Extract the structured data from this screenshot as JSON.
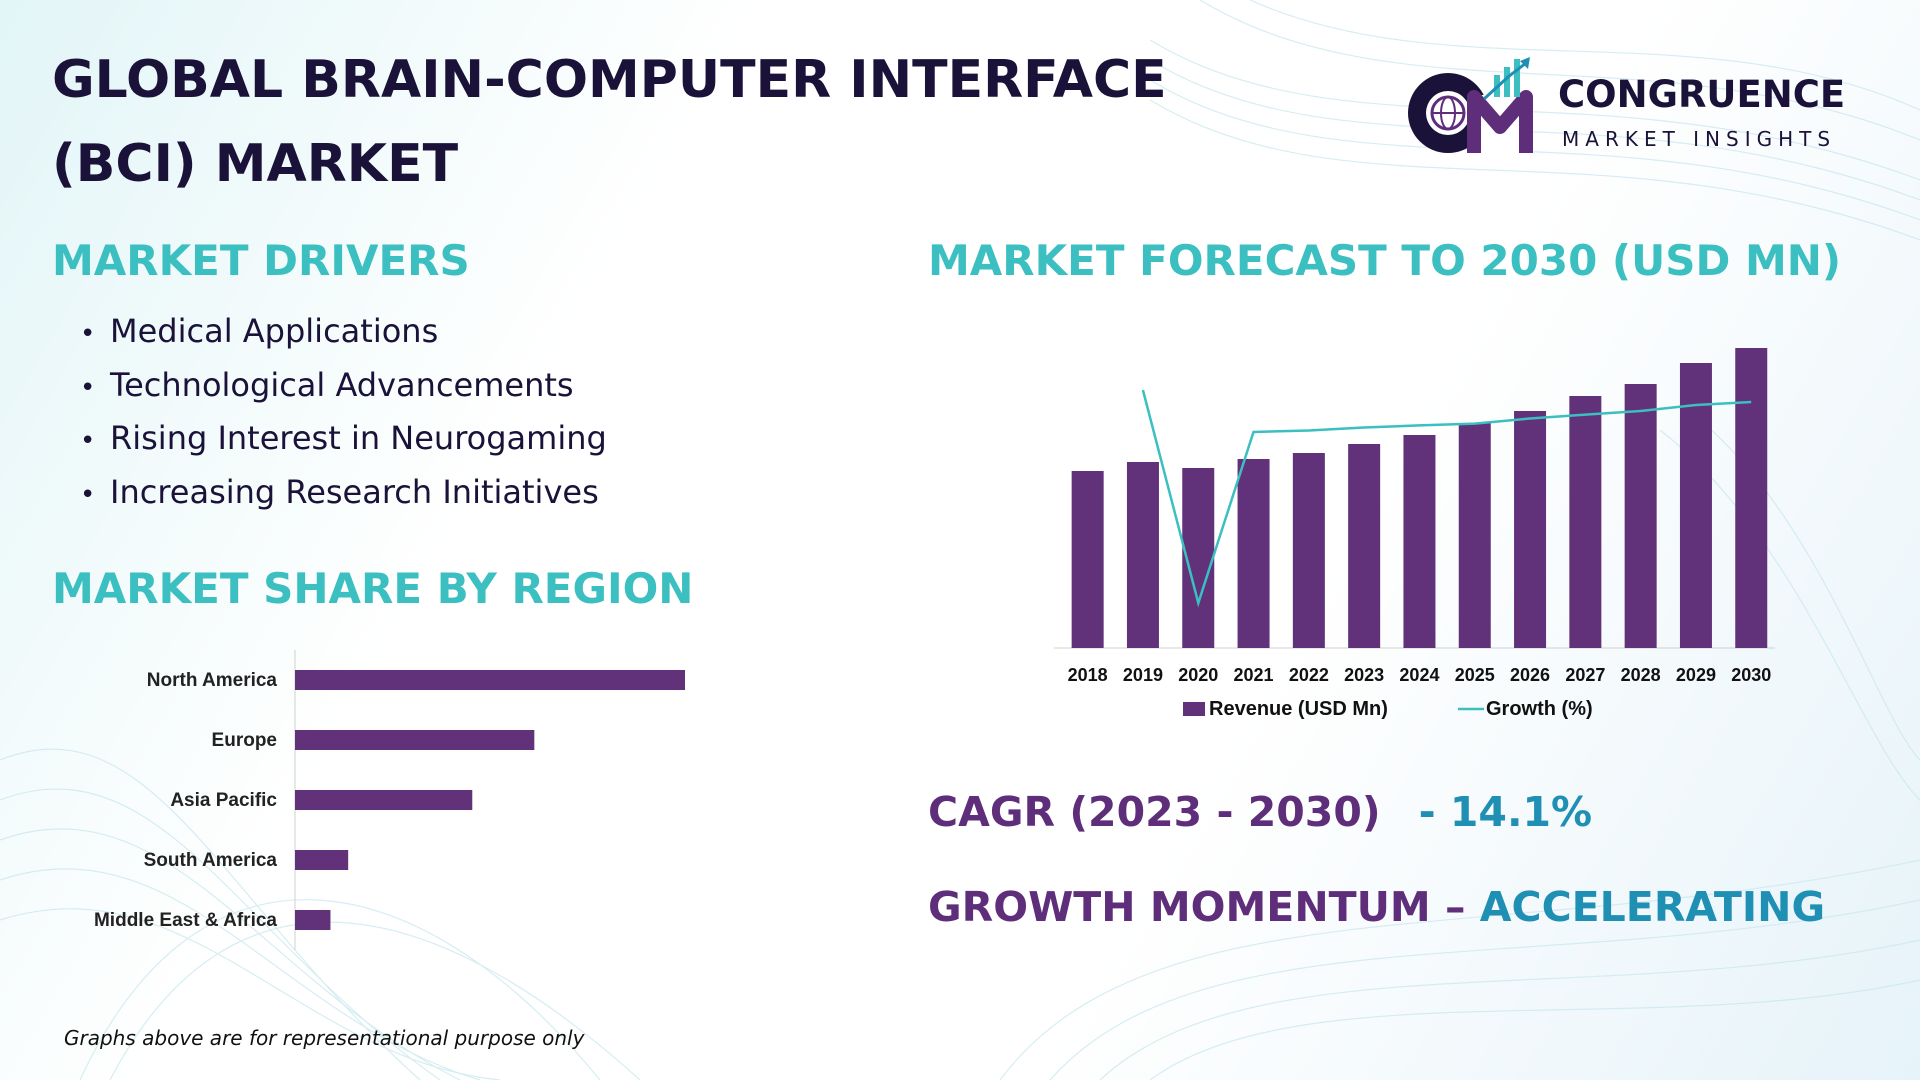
{
  "title": "GLOBAL BRAIN-COMPUTER INTERFACE (BCI) MARKET",
  "title_lines": [
    "GLOBAL BRAIN-COMPUTER INTERFACE",
    "(BCI) MARKET"
  ],
  "logo": {
    "monogram": "CM",
    "name": "CONGRUENCE",
    "tagline": "MARKET INSIGHTS"
  },
  "drivers": {
    "heading": "MARKET DRIVERS",
    "bullet": "•",
    "items": [
      "Medical Applications",
      "Technological Advancements",
      "Rising Interest in Neurogaming",
      "Increasing Research Initiatives"
    ]
  },
  "region": {
    "heading": "MARKET SHARE BY REGION"
  },
  "forecast": {
    "heading": "MARKET FORECAST TO 2030 (USD MN)"
  },
  "cagr": {
    "label": "CAGR (2023 - 2030)",
    "value": "- 14.1%"
  },
  "momentum": {
    "label": "GROWTH MOMENTUM",
    "dash": " – ",
    "value": "ACCELERATING"
  },
  "footnote": "Graphs above are for representational purpose only",
  "colors": {
    "bar": "#61317a",
    "line": "#3bbfc0",
    "heading": "#3bbfc0",
    "title": "#1a1238",
    "accent": "#1f8fb4"
  },
  "chart_data": [
    {
      "type": "bar",
      "orientation": "horizontal",
      "categories": [
        "North America",
        "Europe",
        "Asia Pacific",
        "South America",
        "Middle East & Africa"
      ],
      "values": [
        44,
        27,
        20,
        6,
        4
      ],
      "grid": false,
      "legend": "none"
    },
    {
      "type": "bar",
      "categories": [
        "2018",
        "2019",
        "2020",
        "2021",
        "2022",
        "2023",
        "2024",
        "2025",
        "2026",
        "2027",
        "2028",
        "2029",
        "2030"
      ],
      "series": [
        {
          "name": "Revenue (USD Mn)",
          "type": "bar",
          "values": [
            59,
            62,
            60,
            63,
            65,
            68,
            71,
            75,
            79,
            84,
            88,
            95,
            100
          ]
        },
        {
          "name": "Growth (%)",
          "type": "line",
          "values": [
            null,
            86,
            15,
            72,
            72.5,
            73.5,
            74.2,
            74.8,
            76.5,
            77.8,
            79,
            81,
            82
          ]
        }
      ],
      "ylim": [
        0,
        100
      ],
      "grid": false,
      "legend": "bottom"
    }
  ]
}
